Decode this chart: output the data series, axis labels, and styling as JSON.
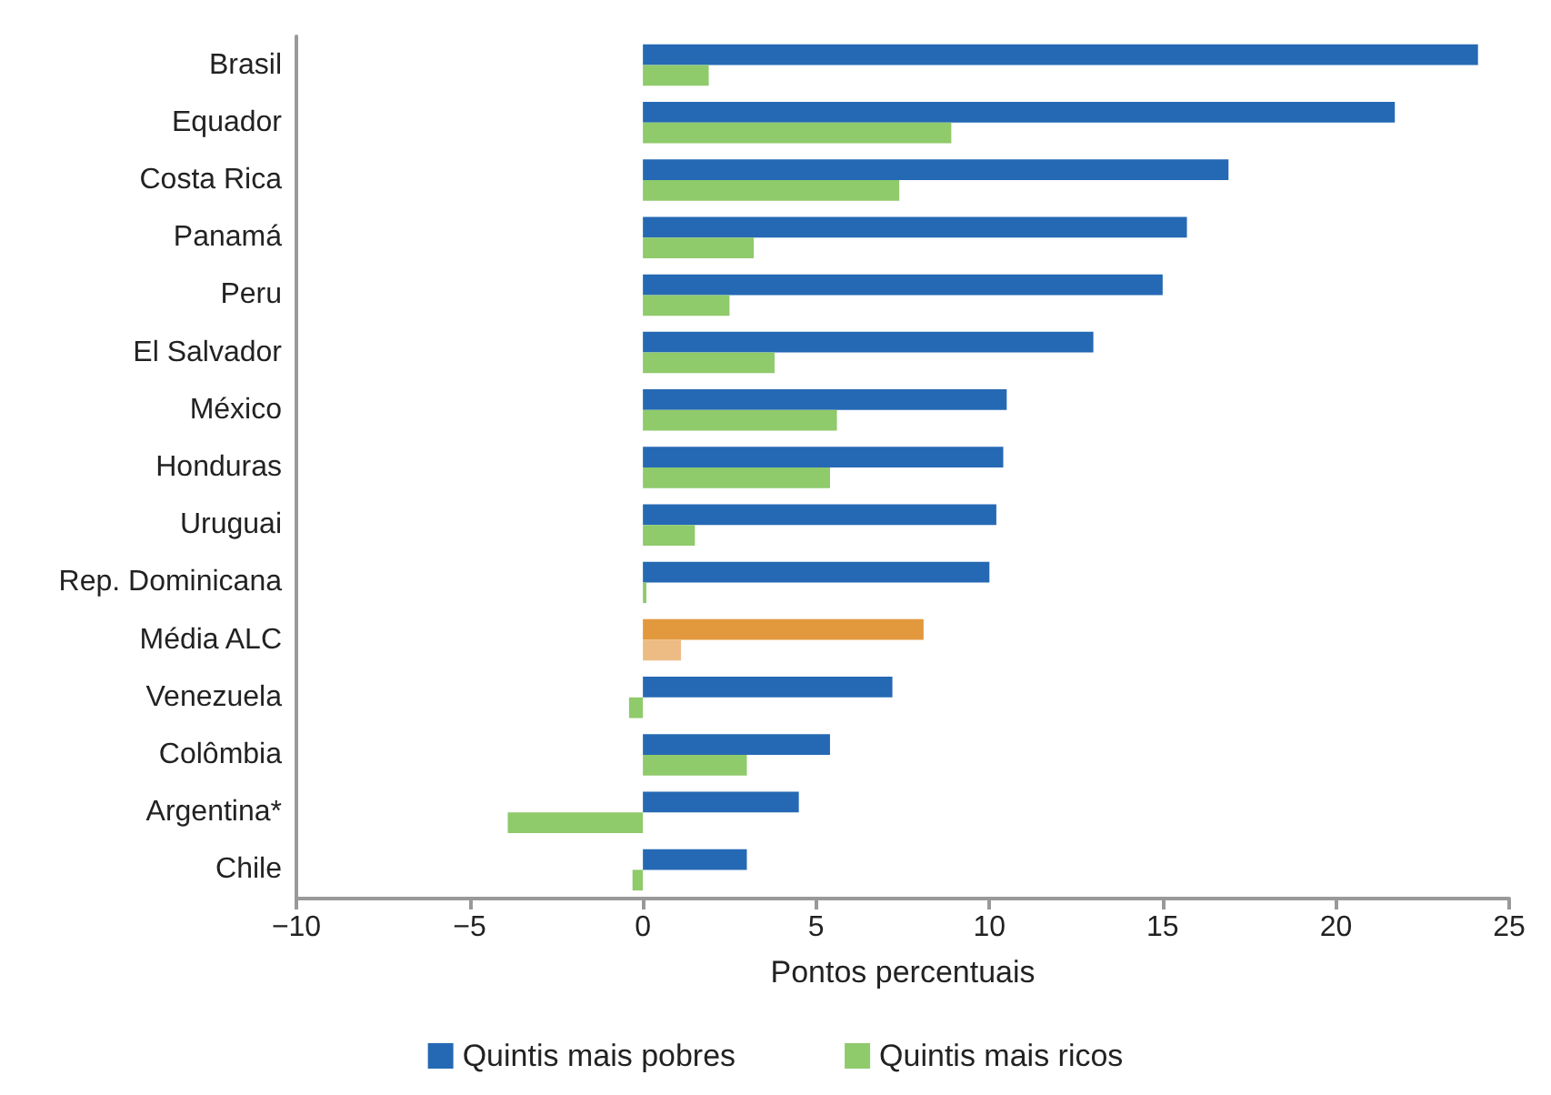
{
  "chart_data": {
    "type": "bar",
    "orientation": "horizontal",
    "xlabel": "Pontos percentuais",
    "categories": [
      "Brasil",
      "Equador",
      "Costa Rica",
      "Panamá",
      "Peru",
      "El Salvador",
      "México",
      "Honduras",
      "Uruguai",
      "Rep. Dominicana",
      "Média ALC",
      "Venezuela",
      "Colômbia",
      "Argentina*",
      "Chile"
    ],
    "series": [
      {
        "name": "Quintis mais pobres",
        "color": "#2569b4",
        "colors": [
          "#2569b4",
          "#2569b4",
          "#2569b4",
          "#2569b4",
          "#2569b4",
          "#2569b4",
          "#2569b4",
          "#2569b4",
          "#2569b4",
          "#2569b4",
          "#e2983c",
          "#2569b4",
          "#2569b4",
          "#2569b4",
          "#2569b4"
        ],
        "values": [
          24.1,
          21.7,
          16.9,
          15.7,
          15.0,
          13.0,
          10.5,
          10.4,
          10.2,
          10.0,
          8.1,
          7.2,
          5.4,
          4.5,
          3.0
        ]
      },
      {
        "name": "Quintis mais ricos",
        "color": "#8fca6b",
        "colors": [
          "#8fca6b",
          "#8fca6b",
          "#8fca6b",
          "#8fca6b",
          "#8fca6b",
          "#8fca6b",
          "#8fca6b",
          "#8fca6b",
          "#8fca6b",
          "#8fca6b",
          "#edbc85",
          "#8fca6b",
          "#8fca6b",
          "#8fca6b",
          "#8fca6b"
        ],
        "values": [
          1.9,
          8.9,
          7.4,
          3.2,
          2.5,
          3.8,
          5.6,
          5.4,
          1.5,
          0.1,
          1.1,
          -0.4,
          3.0,
          -3.9,
          -0.3
        ]
      }
    ],
    "xlim": [
      -10,
      25
    ],
    "xticks": [
      {
        "value": -10,
        "label": "−10"
      },
      {
        "value": -5,
        "label": "−5"
      },
      0,
      5,
      10,
      15,
      20,
      25
    ],
    "grid": false,
    "legend": "bottom"
  }
}
